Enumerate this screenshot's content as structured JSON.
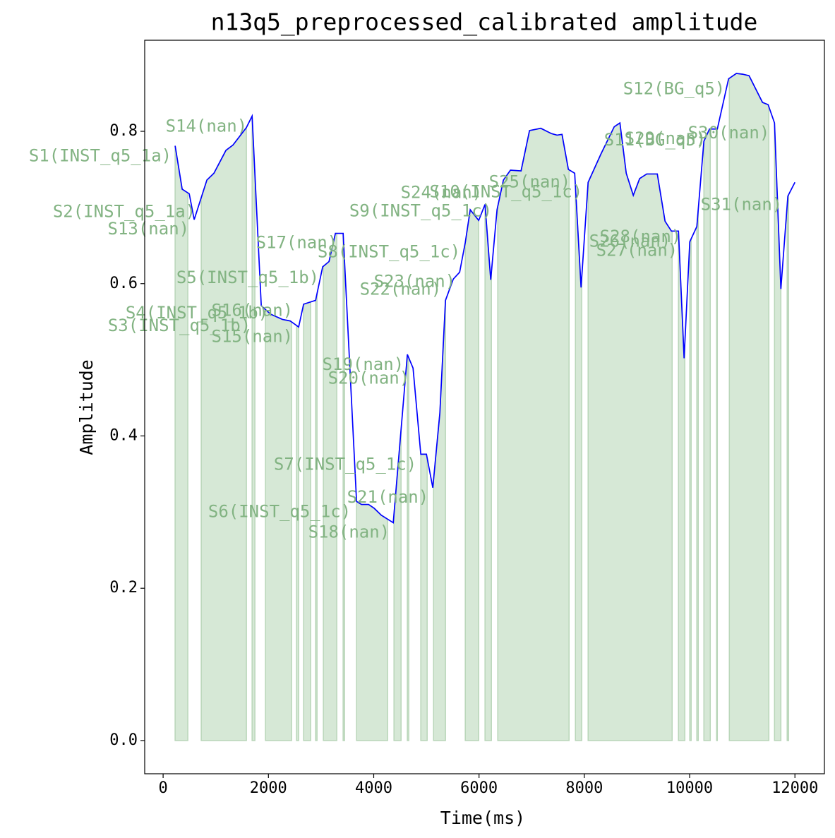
{
  "chart_data": {
    "type": "line",
    "title": "n13q5_preprocessed_calibrated amplitude",
    "xlabel": "Time(ms)",
    "ylabel": "Amplitude",
    "color": "blue",
    "fill_color": "#d6e8d6",
    "annotation_color": "#82b382",
    "x": [
      228,
      362,
      496,
      590,
      831,
      965,
      1193,
      1327,
      1582,
      1690,
      1864,
      2038,
      2266,
      2413,
      2574,
      2668,
      2896,
      3030,
      3151,
      3272,
      3419,
      3674,
      3768,
      3902,
      4009,
      4143,
      4371,
      4639,
      4747,
      4894,
      5001,
      5122,
      5256,
      5363,
      5511,
      5632,
      5739,
      5833,
      5994,
      6114,
      6222,
      6342,
      6463,
      6597,
      6798,
      6959,
      7173,
      7375,
      7482,
      7576,
      7697,
      7817,
      7938,
      8072,
      8314,
      8568,
      8676,
      8796,
      8930,
      9051,
      9185,
      9386,
      9533,
      9654,
      9788,
      9895,
      10003,
      10137,
      10271,
      10378,
      10526,
      10740,
      10888,
      11008,
      11129,
      11384,
      11491,
      11612,
      11733,
      11866,
      12000
    ],
    "values": [
      0.781,
      0.724,
      0.718,
      0.684,
      0.736,
      0.745,
      0.775,
      0.782,
      0.805,
      0.82,
      0.571,
      0.56,
      0.553,
      0.551,
      0.543,
      0.573,
      0.578,
      0.622,
      0.629,
      0.666,
      0.666,
      0.314,
      0.31,
      0.31,
      0.305,
      0.296,
      0.286,
      0.507,
      0.489,
      0.376,
      0.376,
      0.332,
      0.43,
      0.578,
      0.606,
      0.615,
      0.654,
      0.697,
      0.683,
      0.704,
      0.605,
      0.697,
      0.736,
      0.749,
      0.748,
      0.801,
      0.804,
      0.797,
      0.795,
      0.796,
      0.75,
      0.745,
      0.595,
      0.733,
      0.77,
      0.806,
      0.811,
      0.745,
      0.716,
      0.738,
      0.744,
      0.744,
      0.682,
      0.669,
      0.669,
      0.502,
      0.655,
      0.675,
      0.787,
      0.803,
      0.803,
      0.869,
      0.876,
      0.875,
      0.873,
      0.838,
      0.835,
      0.811,
      0.593,
      0.715,
      0.733
    ],
    "spans": [
      [
        228,
        469
      ],
      [
        724,
        1582
      ],
      [
        1690,
        1743
      ],
      [
        1944,
        2440
      ],
      [
        2534,
        2574
      ],
      [
        2668,
        2802
      ],
      [
        2896,
        2923
      ],
      [
        3044,
        3298
      ],
      [
        3419,
        3446
      ],
      [
        3674,
        4264
      ],
      [
        4385,
        4519
      ],
      [
        4639,
        4666
      ],
      [
        4894,
        5015
      ],
      [
        5136,
        5363
      ],
      [
        5739,
        5994
      ],
      [
        6114,
        6235
      ],
      [
        6356,
        7710
      ],
      [
        7831,
        7951
      ],
      [
        8072,
        9668
      ],
      [
        9788,
        9909
      ],
      [
        10003,
        10029
      ],
      [
        10137,
        10164
      ],
      [
        10271,
        10392
      ],
      [
        10512,
        10526
      ],
      [
        10754,
        11505
      ],
      [
        11612,
        11733
      ],
      [
        11853,
        11880
      ]
    ],
    "annotations": [
      {
        "text": "S1(INST_q5_1a)",
        "x": 161,
        "y": 0.767
      },
      {
        "text": "S2(INST_q5_1a)",
        "x": 617,
        "y": 0.694
      },
      {
        "text": "S13(nan)",
        "x": 496,
        "y": 0.671
      },
      {
        "text": "S14(nan)",
        "x": 1596,
        "y": 0.806
      },
      {
        "text": "S3(INST_q5_1b)",
        "x": 1663,
        "y": 0.544
      },
      {
        "text": "S4(INST_q5_1b)",
        "x": 1998,
        "y": 0.561
      },
      {
        "text": "S16(nan)",
        "x": 2467,
        "y": 0.564
      },
      {
        "text": "S15(nan)",
        "x": 2467,
        "y": 0.53
      },
      {
        "text": "S5(INST_q5_1b)",
        "x": 2963,
        "y": 0.607
      },
      {
        "text": "S17(nan)",
        "x": 3312,
        "y": 0.653
      },
      {
        "text": "S8(INST_q5_1c)",
        "x": 5645,
        "y": 0.641
      },
      {
        "text": "S9(INST_q5_1c)",
        "x": 6248,
        "y": 0.695
      },
      {
        "text": "S6(INST_q5_1c)",
        "x": 3567,
        "y": 0.3
      },
      {
        "text": "S7(INST_q5_1c)",
        "x": 4814,
        "y": 0.362
      },
      {
        "text": "S18(nan)",
        "x": 4304,
        "y": 0.273
      },
      {
        "text": "S19(nan)",
        "x": 4572,
        "y": 0.493
      },
      {
        "text": "S20(nan)",
        "x": 4680,
        "y": 0.475
      },
      {
        "text": "S21(nan)",
        "x": 5042,
        "y": 0.319
      },
      {
        "text": "S22(nan)",
        "x": 5283,
        "y": 0.592
      },
      {
        "text": "S23(nan)",
        "x": 5551,
        "y": 0.602
      },
      {
        "text": "S24(nan)",
        "x": 6061,
        "y": 0.719
      },
      {
        "text": "S10(INST_q5_1c)",
        "x": 7965,
        "y": 0.72
      },
      {
        "text": "S25(nan)",
        "x": 7737,
        "y": 0.733
      },
      {
        "text": "S11(BG_q5)",
        "x": 10311,
        "y": 0.788
      },
      {
        "text": "S29(nan)",
        "x": 10311,
        "y": 0.79
      },
      {
        "text": "S30(nan)",
        "x": 11518,
        "y": 0.797
      },
      {
        "text": "S12(BG_q5)",
        "x": 10673,
        "y": 0.855
      },
      {
        "text": "S31(nan)",
        "x": 11759,
        "y": 0.703
      },
      {
        "text": "S26(nan)",
        "x": 9641,
        "y": 0.655
      },
      {
        "text": "S27(nan)",
        "x": 9775,
        "y": 0.643
      },
      {
        "text": "S28(nan)",
        "x": 9842,
        "y": 0.661
      }
    ],
    "xlim": [
      -350,
      12560
    ],
    "ylim": [
      -0.0436,
      0.9196
    ],
    "xticks": [
      0,
      2000,
      4000,
      6000,
      8000,
      10000,
      12000
    ],
    "yticks": [
      {
        "value": 0,
        "label": "0.0"
      },
      0.2,
      0.4,
      0.6,
      0.8
    ]
  }
}
